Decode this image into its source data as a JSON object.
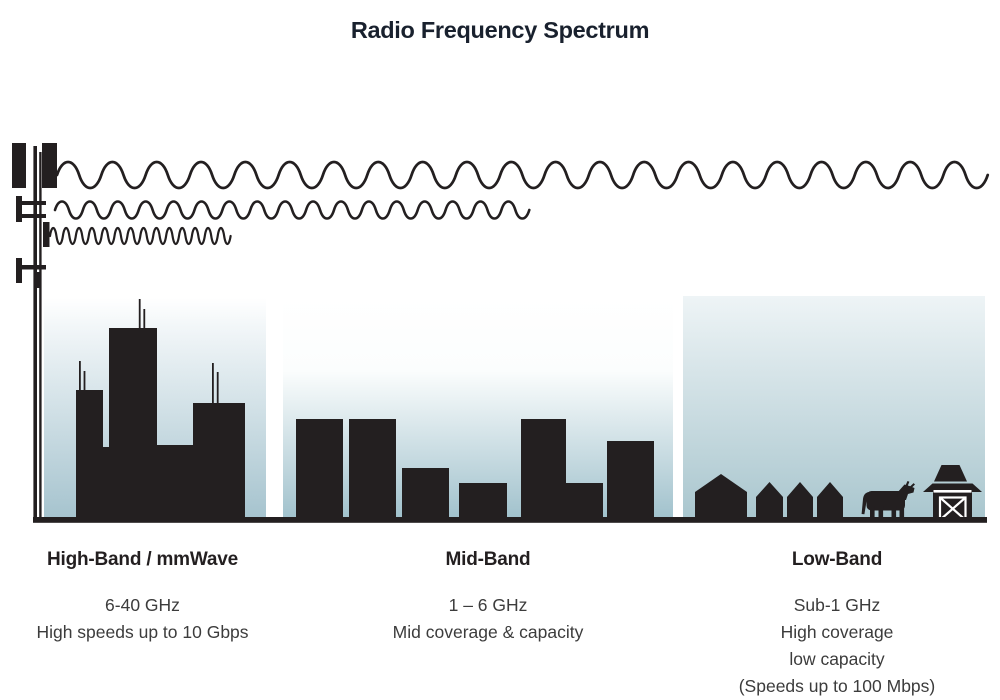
{
  "title": "Radio Frequency Spectrum",
  "colors": {
    "ink": "#231f20",
    "title_text": "#19212e",
    "body_text": "#3c3c3c",
    "sky_bottom_blue": "#a9c6ce",
    "sky_top_white": "#ffffff"
  },
  "tower": {
    "icon": "cell-tower"
  },
  "waves": [
    {
      "icon": "long-wave",
      "band": "Low-Band",
      "reach": "longest"
    },
    {
      "icon": "medium-wave",
      "band": "Mid-Band",
      "reach": "medium"
    },
    {
      "icon": "short-wave",
      "band": "High-Band / mmWave",
      "reach": "shortest"
    }
  ],
  "bands": [
    {
      "name": "High-Band / mmWave",
      "lines": [
        "6-40 GHz",
        "High speeds up to 10 Gbps"
      ],
      "scene_icons": [
        "skyscrapers"
      ]
    },
    {
      "name": "Mid-Band",
      "lines": [
        "1 – 6 GHz",
        "Mid coverage & capacity"
      ],
      "scene_icons": [
        "mid-rise-buildings"
      ]
    },
    {
      "name": "Low-Band",
      "lines": [
        "Sub-1 GHz",
        "High coverage",
        "low capacity",
        "(Speeds up to 100 Mbps)"
      ],
      "scene_icons": [
        "houses",
        "cow",
        "barn"
      ]
    }
  ]
}
